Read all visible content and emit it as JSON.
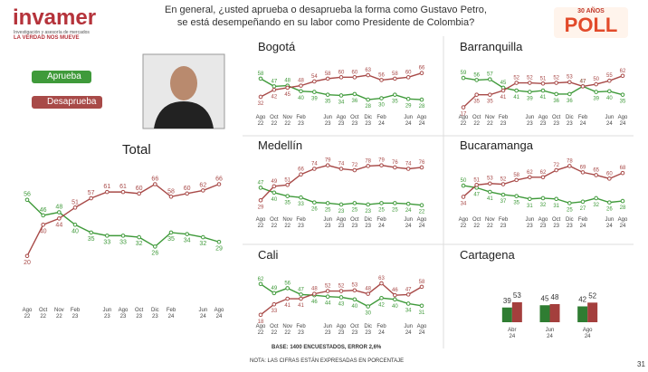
{
  "header": {
    "logo": "invamer",
    "logo_tagline": "Investigación y asesoría de mercados",
    "logo_motto": "LA VERDAD NOS MUEVE",
    "title": "En general, ¿usted aprueba o desaprueba la forma como Gustavo Petro,\nse está desempeñando en su labor como Presidente de Colombia?",
    "badge_top": "30 AÑOS",
    "badge_main": "POLL"
  },
  "footer": {
    "base": "BASE: 1400 ENCUESTADOS, ERROR 2,6%",
    "note": "NOTA: LAS CIFRAS ESTÁN EXPRESADAS EN PORCENTAJE",
    "page": "31"
  },
  "chart_data": [
    {
      "type": "line",
      "title": "Total",
      "categories": [
        "Ago\n22",
        "Oct\n22",
        "Nov\n22",
        "Feb\n23",
        null,
        "Jun\n23",
        "Ago\n23",
        "Oct\n23",
        "Dic\n23",
        "Feb\n24",
        null,
        "Jun\n24",
        "Ago\n24"
      ],
      "ylim": [
        10,
        75
      ],
      "series": [
        {
          "name": "Aprueba",
          "color": "#3f9a3a",
          "values": [
            56,
            46,
            48,
            40,
            35,
            33,
            33,
            32,
            26,
            35,
            34,
            32,
            29
          ]
        },
        {
          "name": "Desaprueba",
          "color": "#a84a48",
          "values": [
            20,
            40,
            44,
            51,
            57,
            61,
            61,
            60,
            66,
            58,
            60,
            62,
            66
          ]
        }
      ]
    },
    {
      "type": "line",
      "title": "Bogotá",
      "categories": [
        "Ago\n22",
        "Oct\n22",
        "Nov\n22",
        "Feb\n23",
        null,
        "Jun\n23",
        "Ago\n23",
        "Oct\n23",
        "Dic\n23",
        "Feb\n24",
        null,
        "Jun\n24",
        "Ago\n24"
      ],
      "ylim": [
        10,
        85
      ],
      "series": [
        {
          "color": "#3f9a3a",
          "values": [
            58,
            47,
            48,
            40,
            39,
            35,
            34,
            36,
            28,
            30,
            35,
            29,
            28
          ]
        },
        {
          "color": "#a84a48",
          "values": [
            32,
            42,
            45,
            48,
            54,
            58,
            60,
            60,
            63,
            56,
            58,
            60,
            66
          ]
        }
      ]
    },
    {
      "type": "line",
      "title": "Barranquilla",
      "categories": [
        "Ago\n22",
        "Oct\n22",
        "Nov\n22",
        "Feb\n23",
        null,
        "Jun\n23",
        "Ago\n23",
        "Oct\n23",
        "Dic\n23",
        "Feb\n24",
        null,
        "Jun\n24",
        "Ago\n24"
      ],
      "ylim": [
        10,
        85
      ],
      "series": [
        {
          "color": "#3f9a3a",
          "values": [
            59,
            56,
            57,
            45,
            41,
            39,
            41,
            36,
            36,
            47,
            39,
            40,
            35
          ]
        },
        {
          "color": "#a84a48",
          "values": [
            17,
            35,
            35,
            41,
            52,
            52,
            51,
            52,
            53,
            47,
            50,
            55,
            62
          ]
        }
      ]
    },
    {
      "type": "line",
      "title": "Medellín",
      "categories": [
        "Ago\n22",
        "Oct\n22",
        "Nov\n22",
        "Feb\n23",
        null,
        "Jun\n23",
        "Ago\n23",
        "Oct\n23",
        "Dic\n23",
        "Feb\n24",
        null,
        "Jun\n24",
        "Ago\n24"
      ],
      "ylim": [
        10,
        85
      ],
      "series": [
        {
          "color": "#3f9a3a",
          "values": [
            47,
            40,
            35,
            33,
            26,
            25,
            23,
            25,
            23,
            25,
            25,
            24,
            22
          ]
        },
        {
          "color": "#a84a48",
          "values": [
            29,
            49,
            51,
            66,
            74,
            79,
            74,
            72,
            78,
            79,
            76,
            74,
            76
          ]
        }
      ]
    },
    {
      "type": "line",
      "title": "Bucaramanga",
      "categories": [
        "Ago\n22",
        "Oct\n22",
        "Nov\n22",
        "Feb\n23",
        null,
        "Jun\n23",
        "Ago\n23",
        "Oct\n23",
        "Dic\n23",
        "Feb\n24",
        null,
        "Jun\n24",
        "Ago\n24"
      ],
      "ylim": [
        10,
        85
      ],
      "series": [
        {
          "color": "#3f9a3a",
          "values": [
            50,
            47,
            41,
            37,
            35,
            31,
            32,
            31,
            25,
            27,
            32,
            26,
            28
          ]
        },
        {
          "color": "#a84a48",
          "values": [
            34,
            51,
            53,
            52,
            58,
            62,
            62,
            72,
            78,
            69,
            65,
            60,
            68
          ]
        }
      ]
    },
    {
      "type": "line",
      "title": "Cali",
      "categories": [
        "Ago\n22",
        "Oct\n22",
        "Nov\n22",
        "Feb\n23",
        null,
        "Jun\n23",
        "Ago\n23",
        "Oct\n23",
        "Dic\n23",
        "Feb\n24",
        null,
        "Jun\n24",
        "Ago\n24"
      ],
      "ylim": [
        10,
        85
      ],
      "series": [
        {
          "color": "#3f9a3a",
          "values": [
            62,
            49,
            56,
            47,
            46,
            44,
            43,
            40,
            30,
            42,
            40,
            34,
            31
          ]
        },
        {
          "color": "#a84a48",
          "values": [
            18,
            33,
            41,
            41,
            48,
            52,
            52,
            53,
            48,
            63,
            46,
            47,
            58
          ]
        }
      ]
    },
    {
      "type": "bar",
      "title": "Cartagena",
      "categories": [
        "Abr\n24",
        "Jun\n24",
        "Ago\n24"
      ],
      "ylim": [
        0,
        120
      ],
      "series": [
        {
          "color": "#2f7d32",
          "values": [
            39,
            45,
            42
          ]
        },
        {
          "color": "#a43f3d",
          "values": [
            53,
            48,
            52
          ]
        }
      ]
    }
  ]
}
